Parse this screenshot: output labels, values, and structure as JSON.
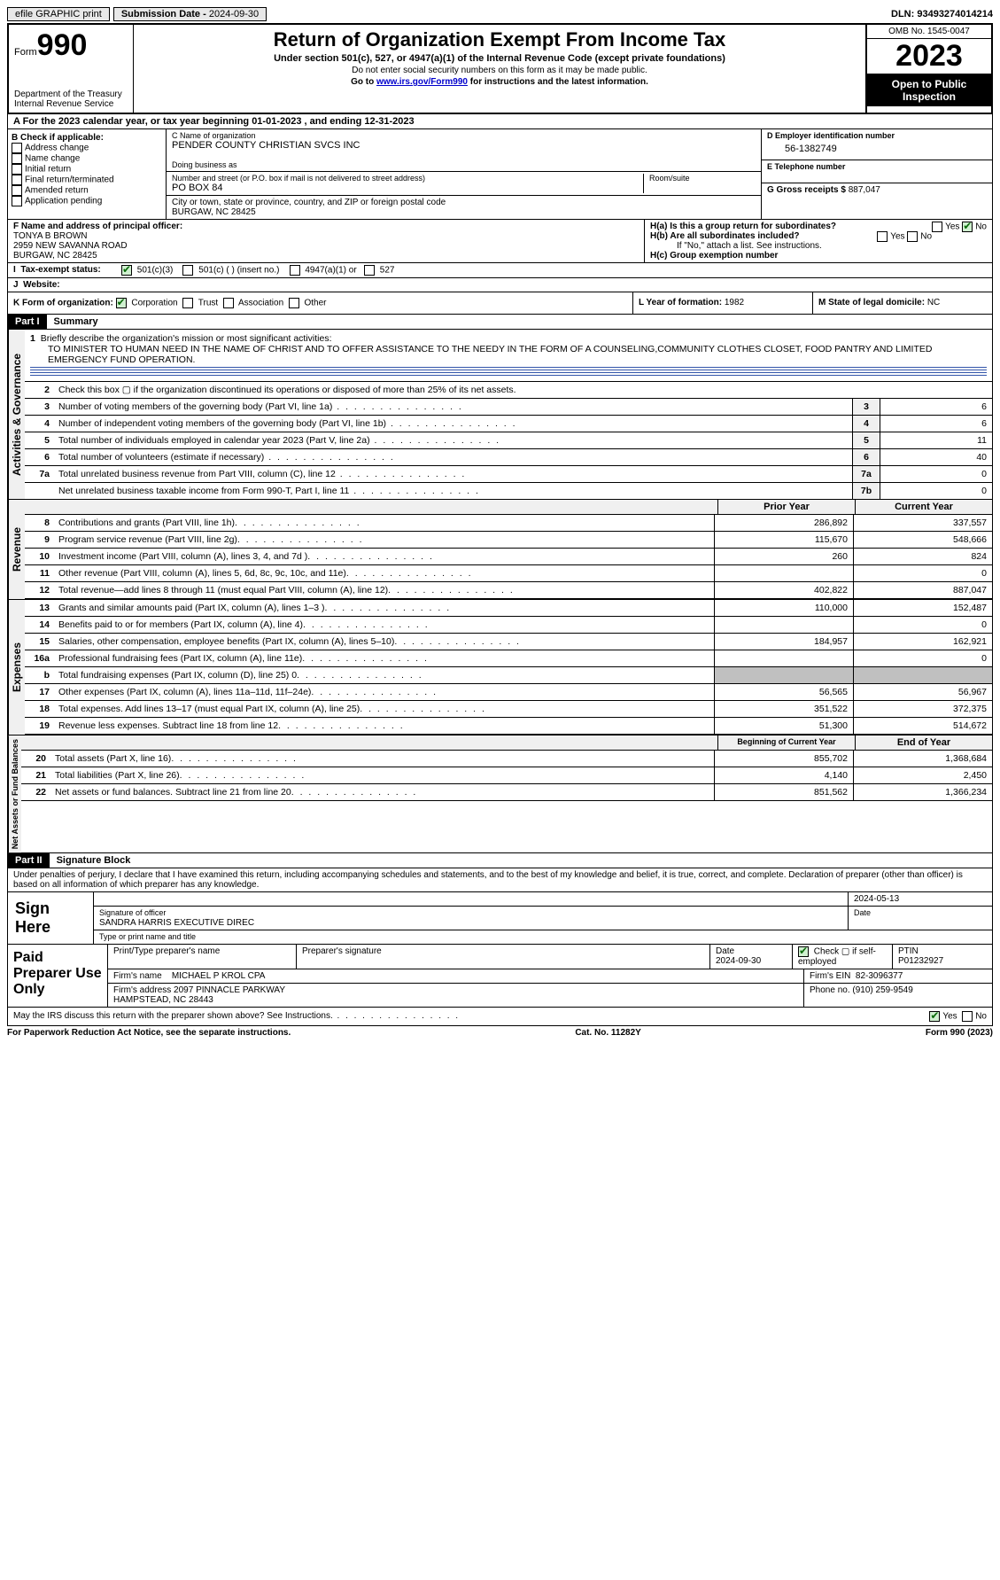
{
  "topbar": {
    "efile": "efile GRAPHIC print",
    "submission_label": "Submission Date - ",
    "submission_date": "2024-09-30",
    "dln_label": "DLN: ",
    "dln": "93493274014214"
  },
  "header": {
    "form_label": "Form",
    "form_no": "990",
    "dept": "Department of the Treasury\nInternal Revenue Service",
    "title": "Return of Organization Exempt From Income Tax",
    "subtitle": "Under section 501(c), 527, or 4947(a)(1) of the Internal Revenue Code (except private foundations)",
    "instr1": "Do not enter social security numbers on this form as it may be made public.",
    "instr2_pre": "Go to ",
    "instr2_link": "www.irs.gov/Form990",
    "instr2_post": " for instructions and the latest information.",
    "omb": "OMB No. 1545-0047",
    "year": "2023",
    "inspect": "Open to Public Inspection"
  },
  "section_a": {
    "taxyear": "A For the 2023 calendar year, or tax year beginning 01-01-2023   , and ending 12-31-2023"
  },
  "box_b": {
    "title": "B Check if applicable:",
    "opts": [
      "Address change",
      "Name change",
      "Initial return",
      "Final return/terminated",
      "Amended return",
      "Application pending"
    ]
  },
  "box_c": {
    "name_lbl": "C Name of organization",
    "name": "PENDER COUNTY CHRISTIAN SVCS INC",
    "dba_lbl": "Doing business as",
    "addr_lbl": "Number and street (or P.O. box if mail is not delivered to street address)",
    "addr": "PO BOX 84",
    "room_lbl": "Room/suite",
    "city_lbl": "City or town, state or province, country, and ZIP or foreign postal code",
    "city": "BURGAW, NC  28425"
  },
  "box_d": {
    "lbl": "D Employer identification number",
    "val": "56-1382749"
  },
  "box_e": {
    "lbl": "E Telephone number",
    "val": ""
  },
  "box_g": {
    "lbl": "G Gross receipts $",
    "val": "887,047"
  },
  "box_f": {
    "lbl": "F  Name and address of principal officer:",
    "name": "TONYA B BROWN",
    "addr1": "2959 NEW SAVANNA ROAD",
    "addr2": "BURGAW, NC  28425"
  },
  "box_h": {
    "ha": "H(a)  Is this a group return for subordinates?",
    "hb": "H(b)  Are all subordinates included?",
    "hb_note": "If \"No,\" attach a list. See instructions.",
    "hc": "H(c)  Group exemption number",
    "yes": "Yes",
    "no": "No"
  },
  "box_i": {
    "lbl": "Tax-exempt status:",
    "o1": "501(c)(3)",
    "o2": "501(c) (  ) (insert no.)",
    "o3": "4947(a)(1) or",
    "o4": "527"
  },
  "box_j": {
    "lbl": "Website:",
    "val": ""
  },
  "box_k": {
    "lbl": "K Form of organization:",
    "o1": "Corporation",
    "o2": "Trust",
    "o3": "Association",
    "o4": "Other"
  },
  "box_l": {
    "lbl": "L Year of formation:",
    "val": "1982"
  },
  "box_m": {
    "lbl": "M State of legal domicile:",
    "val": "NC"
  },
  "part1": {
    "hdr": "Part I",
    "title": "Summary",
    "mission_lbl": "Briefly describe the organization's mission or most significant activities:",
    "mission": "TO MINISTER TO HUMAN NEED IN THE NAME OF CHRIST AND TO OFFER ASSISTANCE TO THE NEEDY IN THE FORM OF A COUNSELING,COMMUNITY CLOTHES CLOSET, FOOD PANTRY AND LIMITED EMERGENCY FUND OPERATION.",
    "l2": "Check this box ▢ if the organization discontinued its operations or disposed of more than 25% of its net assets.",
    "sections": {
      "ag": "Activities & Governance",
      "rev": "Revenue",
      "exp": "Expenses",
      "na": "Net Assets or Fund Balances"
    },
    "lines_ag": [
      {
        "n": "3",
        "t": "Number of voting members of the governing body (Part VI, line 1a)",
        "box": "3",
        "v": "6"
      },
      {
        "n": "4",
        "t": "Number of independent voting members of the governing body (Part VI, line 1b)",
        "box": "4",
        "v": "6"
      },
      {
        "n": "5",
        "t": "Total number of individuals employed in calendar year 2023 (Part V, line 2a)",
        "box": "5",
        "v": "11"
      },
      {
        "n": "6",
        "t": "Total number of volunteers (estimate if necessary)",
        "box": "6",
        "v": "40"
      },
      {
        "n": "7a",
        "t": "Total unrelated business revenue from Part VIII, column (C), line 12",
        "box": "7a",
        "v": "0"
      },
      {
        "n": "",
        "t": "Net unrelated business taxable income from Form 990-T, Part I, line 11",
        "box": "7b",
        "v": "0"
      }
    ],
    "col_hdr1": "Prior Year",
    "col_hdr2": "Current Year",
    "lines_rev": [
      {
        "n": "8",
        "t": "Contributions and grants (Part VIII, line 1h)",
        "c1": "286,892",
        "c2": "337,557"
      },
      {
        "n": "9",
        "t": "Program service revenue (Part VIII, line 2g)",
        "c1": "115,670",
        "c2": "548,666"
      },
      {
        "n": "10",
        "t": "Investment income (Part VIII, column (A), lines 3, 4, and 7d )",
        "c1": "260",
        "c2": "824"
      },
      {
        "n": "11",
        "t": "Other revenue (Part VIII, column (A), lines 5, 6d, 8c, 9c, 10c, and 11e)",
        "c1": "",
        "c2": "0"
      },
      {
        "n": "12",
        "t": "Total revenue—add lines 8 through 11 (must equal Part VIII, column (A), line 12)",
        "c1": "402,822",
        "c2": "887,047"
      }
    ],
    "lines_exp": [
      {
        "n": "13",
        "t": "Grants and similar amounts paid (Part IX, column (A), lines 1–3 )",
        "c1": "110,000",
        "c2": "152,487"
      },
      {
        "n": "14",
        "t": "Benefits paid to or for members (Part IX, column (A), line 4)",
        "c1": "",
        "c2": "0"
      },
      {
        "n": "15",
        "t": "Salaries, other compensation, employee benefits (Part IX, column (A), lines 5–10)",
        "c1": "184,957",
        "c2": "162,921"
      },
      {
        "n": "16a",
        "t": "Professional fundraising fees (Part IX, column (A), line 11e)",
        "c1": "",
        "c2": "0"
      },
      {
        "n": "b",
        "t": "Total fundraising expenses (Part IX, column (D), line 25) 0",
        "c1": "shade",
        "c2": "shade"
      },
      {
        "n": "17",
        "t": "Other expenses (Part IX, column (A), lines 11a–11d, 11f–24e)",
        "c1": "56,565",
        "c2": "56,967"
      },
      {
        "n": "18",
        "t": "Total expenses. Add lines 13–17 (must equal Part IX, column (A), line 25)",
        "c1": "351,522",
        "c2": "372,375"
      },
      {
        "n": "19",
        "t": "Revenue less expenses. Subtract line 18 from line 12",
        "c1": "51,300",
        "c2": "514,672"
      }
    ],
    "col_hdr3": "Beginning of Current Year",
    "col_hdr4": "End of Year",
    "lines_na": [
      {
        "n": "20",
        "t": "Total assets (Part X, line 16)",
        "c1": "855,702",
        "c2": "1,368,684"
      },
      {
        "n": "21",
        "t": "Total liabilities (Part X, line 26)",
        "c1": "4,140",
        "c2": "2,450"
      },
      {
        "n": "22",
        "t": "Net assets or fund balances. Subtract line 21 from line 20",
        "c1": "851,562",
        "c2": "1,366,234"
      }
    ]
  },
  "part2": {
    "hdr": "Part II",
    "title": "Signature Block",
    "decl": "Under penalties of perjury, I declare that I have examined this return, including accompanying schedules and statements, and to the best of my knowledge and belief, it is true, correct, and complete. Declaration of preparer (other than officer) is based on all information of which preparer has any knowledge.",
    "sign_here": "Sign Here",
    "sig_officer_lbl": "Signature of officer",
    "officer": "SANDRA HARRIS  EXECUTIVE DIREC",
    "type_lbl": "Type or print name and title",
    "date_lbl": "Date",
    "date": "2024-05-13",
    "paid_lbl": "Paid Preparer Use Only",
    "prep_name_lbl": "Print/Type preparer's name",
    "prep_sig_lbl": "Preparer's signature",
    "prep_date": "2024-09-30",
    "check_if": "Check ▢ if self-employed",
    "ptin_lbl": "PTIN",
    "ptin": "P01232927",
    "firm_name_lbl": "Firm's name",
    "firm_name": "MICHAEL P KROL CPA",
    "firm_ein_lbl": "Firm's EIN",
    "firm_ein": "82-3096377",
    "firm_addr_lbl": "Firm's address",
    "firm_addr": "2097 PINNACLE PARKWAY\nHAMPSTEAD, NC  28443",
    "phone_lbl": "Phone no.",
    "phone": "(910) 259-9549",
    "discuss": "May the IRS discuss this return with the preparer shown above? See Instructions."
  },
  "footer": {
    "f1": "For Paperwork Reduction Act Notice, see the separate instructions.",
    "f2": "Cat. No. 11282Y",
    "f3": "Form 990 (2023)"
  }
}
